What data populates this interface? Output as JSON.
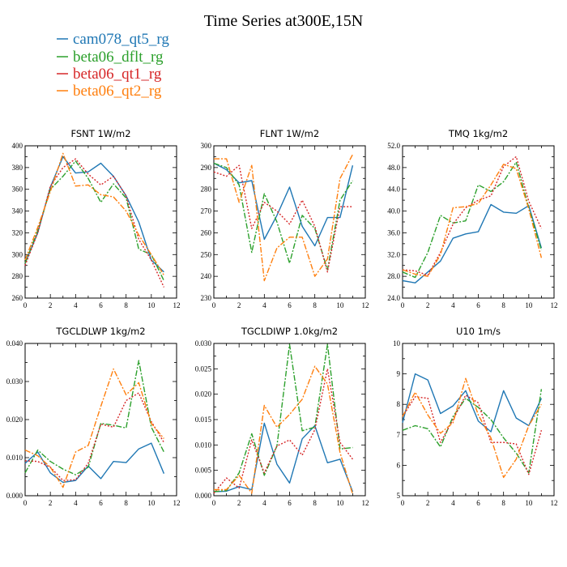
{
  "title": "Time Series at300E,15N",
  "colors": {
    "cam078_qt5_rg": "#1f77b4",
    "beta06_dflt_rg": "#2ca02c",
    "beta06_qt1_rg": "#d62728",
    "beta06_qt2_rg": "#ff7f0e"
  },
  "legend": [
    {
      "name": "cam078_qt5_rg",
      "color": "#1f77b4",
      "dash": "solid"
    },
    {
      "name": "beta06_dflt_rg",
      "color": "#2ca02c",
      "dash": "dashdot"
    },
    {
      "name": "beta06_qt1_rg",
      "color": "#d62728",
      "dash": "dotted"
    },
    {
      "name": "beta06_qt2_rg",
      "color": "#ff7f0e",
      "dash": "dashdot"
    }
  ],
  "chart_data": [
    {
      "type": "line",
      "title": "FSNT   1W/m2",
      "x": [
        0,
        1,
        2,
        3,
        4,
        5,
        6,
        7,
        8,
        9,
        10,
        11
      ],
      "xlim": [
        0,
        12
      ],
      "xticks": [
        "0",
        "2",
        "4",
        "6",
        "8",
        "10",
        "12"
      ],
      "ylim": [
        260,
        400
      ],
      "yticks": [
        "260",
        "280",
        "300",
        "320",
        "340",
        "360",
        "380",
        "400"
      ],
      "series": [
        {
          "name": "cam078_qt5_rg",
          "values": [
            292,
            320,
            362,
            390,
            375,
            376,
            384,
            372,
            354,
            330,
            295,
            284
          ]
        },
        {
          "name": "beta06_dflt_rg",
          "values": [
            292,
            322,
            360,
            372,
            386,
            370,
            348,
            365,
            352,
            305,
            300,
            276
          ]
        },
        {
          "name": "beta06_qt1_rg",
          "values": [
            290,
            320,
            363,
            380,
            388,
            374,
            364,
            372,
            354,
            314,
            295,
            270
          ]
        },
        {
          "name": "beta06_qt2_rg",
          "values": [
            295,
            325,
            358,
            393,
            363,
            364,
            355,
            353,
            340,
            318,
            300,
            281
          ]
        }
      ]
    },
    {
      "type": "line",
      "title": "FLNT   1W/m2",
      "x": [
        0,
        1,
        2,
        3,
        4,
        5,
        6,
        7,
        8,
        9,
        10,
        11
      ],
      "xlim": [
        0,
        12
      ],
      "xticks": [
        "0",
        "2",
        "4",
        "6",
        "8",
        "10",
        "12"
      ],
      "ylim": [
        230,
        300
      ],
      "yticks": [
        "230",
        "240",
        "250",
        "260",
        "270",
        "280",
        "290",
        "300"
      ],
      "series": [
        {
          "name": "cam078_qt5_rg",
          "values": [
            292,
            289,
            283,
            284,
            257,
            268,
            281,
            263,
            254,
            267,
            267,
            291
          ]
        },
        {
          "name": "beta06_dflt_rg",
          "values": [
            292,
            290,
            282,
            251,
            278,
            265,
            246,
            268,
            262,
            243,
            275,
            284
          ]
        },
        {
          "name": "beta06_qt1_rg",
          "values": [
            288,
            286,
            291,
            262,
            274,
            270,
            264,
            275,
            263,
            242,
            272,
            272
          ]
        },
        {
          "name": "beta06_qt2_rg",
          "values": [
            294,
            294,
            274,
            291,
            238,
            253,
            258,
            258,
            240,
            248,
            285,
            296
          ]
        }
      ]
    },
    {
      "type": "line",
      "title": "TMQ   1kg/m2",
      "x": [
        0,
        1,
        2,
        3,
        4,
        5,
        6,
        7,
        8,
        9,
        10,
        11
      ],
      "xlim": [
        0,
        12
      ],
      "xticks": [
        "0",
        "2",
        "4",
        "6",
        "8",
        "10",
        "12"
      ],
      "ylim": [
        24,
        52
      ],
      "yticks": [
        "24.0",
        "28.0",
        "32.0",
        "36.0",
        "40.0",
        "44.0",
        "48.0",
        "52.0"
      ],
      "series": [
        {
          "name": "cam078_qt5_rg",
          "values": [
            27.2,
            26.8,
            28.8,
            30.8,
            35.0,
            35.8,
            36.2,
            41.2,
            39.8,
            39.6,
            41.0,
            33.2
          ]
        },
        {
          "name": "beta06_dflt_rg",
          "values": [
            28.8,
            27.8,
            32.4,
            39.2,
            37.8,
            38.2,
            44.8,
            43.6,
            45.4,
            49.0,
            40.6,
            32.8
          ]
        },
        {
          "name": "beta06_qt1_rg",
          "values": [
            29.2,
            29.0,
            28.2,
            32.4,
            37.6,
            40.6,
            42.0,
            42.8,
            48.2,
            50.0,
            41.8,
            36.8
          ]
        },
        {
          "name": "beta06_qt2_rg",
          "values": [
            29.2,
            28.4,
            28.0,
            32.0,
            40.6,
            40.8,
            41.4,
            44.8,
            48.6,
            47.8,
            40.4,
            31.4
          ]
        }
      ]
    },
    {
      "type": "line",
      "title": "TGCLDLWP   1kg/m2",
      "x": [
        0,
        1,
        2,
        3,
        4,
        5,
        6,
        7,
        8,
        9,
        10,
        11
      ],
      "xlim": [
        0,
        12
      ],
      "xticks": [
        "0",
        "2",
        "4",
        "6",
        "8",
        "10",
        "12"
      ],
      "ylim": [
        0,
        0.04
      ],
      "yticks": [
        "0.000",
        "0.010",
        "0.020",
        "0.030",
        "0.040"
      ],
      "series": [
        {
          "name": "cam078_qt5_rg",
          "values": [
            0.0085,
            0.0115,
            0.006,
            0.0035,
            0.004,
            0.0078,
            0.0045,
            0.009,
            0.0087,
            0.0123,
            0.0138,
            0.0058
          ]
        },
        {
          "name": "beta06_dflt_rg",
          "values": [
            0.006,
            0.012,
            0.009,
            0.007,
            0.0055,
            0.0075,
            0.019,
            0.0185,
            0.0178,
            0.0355,
            0.018,
            0.0115
          ]
        },
        {
          "name": "beta06_qt1_rg",
          "values": [
            0.0092,
            0.009,
            0.0075,
            0.004,
            0.0042,
            0.0085,
            0.0188,
            0.018,
            0.025,
            0.027,
            0.0195,
            0.014
          ]
        },
        {
          "name": "beta06_qt2_rg",
          "values": [
            0.012,
            0.0105,
            0.0075,
            0.0022,
            0.0115,
            0.0132,
            0.0235,
            0.0333,
            0.0265,
            0.0297,
            0.019,
            0.015
          ]
        }
      ]
    },
    {
      "type": "line",
      "title": "TGCLDIWP   1.0kg/m2",
      "x": [
        0,
        1,
        2,
        3,
        4,
        5,
        6,
        7,
        8,
        9,
        10,
        11
      ],
      "xlim": [
        0,
        12
      ],
      "xticks": [
        "0",
        "2",
        "4",
        "6",
        "8",
        "10",
        "12"
      ],
      "ylim": [
        0,
        0.03
      ],
      "yticks": [
        "0.000",
        "0.005",
        "0.010",
        "0.015",
        "0.020",
        "0.025",
        "0.030"
      ],
      "series": [
        {
          "name": "cam078_qt5_rg",
          "values": [
            0.0008,
            0.0009,
            0.0018,
            0.0012,
            0.0143,
            0.0062,
            0.0025,
            0.0112,
            0.0138,
            0.0065,
            0.0072,
            0.0008
          ]
        },
        {
          "name": "beta06_dflt_rg",
          "values": [
            0.0008,
            0.001,
            0.0045,
            0.0122,
            0.004,
            0.0098,
            0.0298,
            0.0128,
            0.0135,
            0.0298,
            0.0092,
            0.0095
          ]
        },
        {
          "name": "beta06_qt1_rg",
          "values": [
            0.0005,
            0.0035,
            0.0015,
            0.011,
            0.0045,
            0.0098,
            0.011,
            0.008,
            0.013,
            0.025,
            0.0105,
            0.0072
          ]
        },
        {
          "name": "beta06_qt2_rg",
          "values": [
            0.0012,
            0.0012,
            0.004,
            0.0005,
            0.0178,
            0.0135,
            0.016,
            0.019,
            0.0255,
            0.022,
            0.0085,
            0.0003
          ]
        }
      ]
    },
    {
      "type": "line",
      "title": "U10   1m/s",
      "x": [
        0,
        1,
        2,
        3,
        4,
        5,
        6,
        7,
        8,
        9,
        10,
        11
      ],
      "xlim": [
        0,
        12
      ],
      "xticks": [
        "0",
        "2",
        "4",
        "6",
        "8",
        "10",
        "12"
      ],
      "ylim": [
        5,
        10
      ],
      "yticks": [
        "5",
        "6",
        "7",
        "8",
        "9",
        "10"
      ],
      "series": [
        {
          "name": "cam078_qt5_rg",
          "values": [
            7.4,
            9.0,
            8.8,
            7.7,
            7.95,
            8.45,
            7.45,
            7.1,
            8.45,
            7.55,
            7.3,
            8.2
          ]
        },
        {
          "name": "beta06_dflt_rg",
          "values": [
            7.15,
            7.3,
            7.2,
            6.6,
            7.6,
            8.2,
            7.9,
            7.5,
            6.9,
            6.4,
            5.75,
            8.5
          ]
        },
        {
          "name": "beta06_qt1_rg",
          "values": [
            7.6,
            8.25,
            8.2,
            6.75,
            7.5,
            8.3,
            8.05,
            6.75,
            6.75,
            6.7,
            5.7,
            7.15
          ]
        },
        {
          "name": "beta06_qt2_rg",
          "values": [
            7.6,
            8.4,
            7.65,
            7.05,
            7.4,
            8.85,
            7.65,
            6.9,
            5.6,
            6.2,
            7.3,
            8.0
          ]
        }
      ]
    }
  ]
}
